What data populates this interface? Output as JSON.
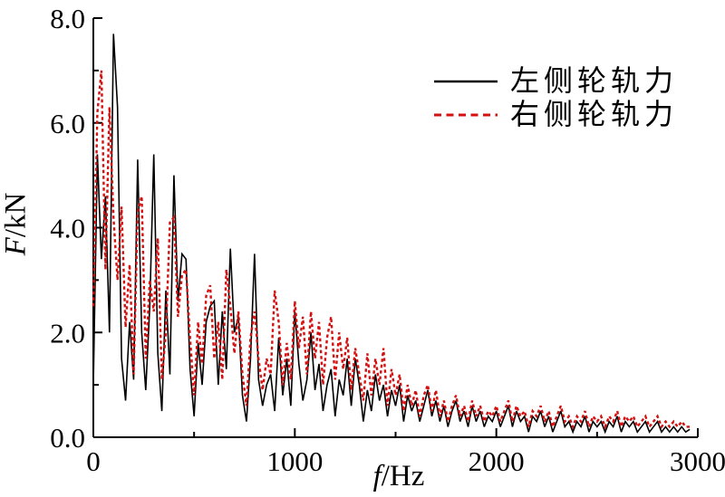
{
  "figure": {
    "background": "#ffffff",
    "text_color": "#000000"
  },
  "chart_data": {
    "type": "line",
    "title": "",
    "xlabel_italic": "f",
    "xlabel_rest": "/Hz",
    "ylabel_italic": "F",
    "ylabel_rest": "/kN",
    "xlim": [
      0,
      3000
    ],
    "ylim": [
      0.0,
      8.0
    ],
    "grid": false,
    "legend_position": "upper-right-inside",
    "x_major_ticks": [
      0,
      1000,
      2000,
      3000
    ],
    "x_major_tick_labels": [
      "0",
      "1000",
      "2000",
      "3000"
    ],
    "x_minor_ticks": [
      500,
      1500,
      2500
    ],
    "y_major_ticks": [
      0,
      2,
      4,
      6,
      8
    ],
    "y_major_tick_labels": [
      "0.0",
      "2.0",
      "4.0",
      "6.0",
      "8.0"
    ],
    "y_minor_ticks": [
      1,
      3,
      5,
      7
    ],
    "x_start": 0,
    "x_step": 20,
    "series": [
      {
        "name": "左侧轮轨力",
        "color": "#000000",
        "style": "solid",
        "line_width": 1.6,
        "values": [
          1.0,
          5.4,
          3.4,
          4.6,
          2.0,
          7.7,
          6.3,
          1.5,
          0.7,
          2.2,
          1.1,
          5.3,
          2.0,
          0.9,
          2.5,
          5.4,
          1.6,
          0.5,
          2.8,
          1.2,
          5.0,
          2.6,
          3.5,
          3.4,
          1.3,
          0.4,
          1.8,
          1.0,
          2.2,
          2.5,
          2.6,
          1.0,
          2.4,
          1.3,
          3.6,
          2.0,
          2.3,
          0.8,
          0.3,
          1.5,
          3.5,
          1.1,
          0.6,
          1.0,
          1.2,
          0.5,
          1.9,
          0.8,
          1.5,
          0.6,
          2.4,
          1.4,
          0.7,
          1.1,
          2.0,
          0.9,
          1.4,
          0.5,
          1.0,
          1.3,
          0.4,
          1.1,
          0.8,
          1.5,
          0.6,
          1.5,
          1.0,
          0.3,
          0.9,
          0.5,
          1.2,
          0.7,
          1.0,
          0.4,
          0.9,
          0.6,
          1.0,
          0.3,
          0.8,
          0.5,
          0.7,
          0.3,
          0.6,
          0.9,
          0.4,
          0.7,
          0.3,
          0.6,
          0.2,
          0.5,
          0.7,
          0.3,
          0.5,
          0.2,
          0.6,
          0.3,
          0.5,
          0.2,
          0.4,
          0.3,
          0.5,
          0.2,
          0.4,
          0.6,
          0.2,
          0.5,
          0.3,
          0.4,
          0.1,
          0.4,
          0.3,
          0.5,
          0.2,
          0.4,
          0.1,
          0.3,
          0.5,
          0.2,
          0.3,
          0.1,
          0.3,
          0.2,
          0.4,
          0.1,
          0.3,
          0.2,
          0.3,
          0.1,
          0.3,
          0.2,
          0.4,
          0.1,
          0.3,
          0.2,
          0.3,
          0.1,
          0.2,
          0.3,
          0.1,
          0.2,
          0.3,
          0.1,
          0.2,
          0.1,
          0.2,
          0.1,
          0.2,
          0.1,
          0.15
        ]
      },
      {
        "name": "右侧轮轨力",
        "color": "#d41111",
        "style": "dashed",
        "line_width": 2.4,
        "values": [
          2.5,
          6.2,
          7.0,
          3.2,
          6.3,
          4.2,
          3.0,
          4.4,
          2.1,
          3.3,
          1.2,
          4.3,
          4.6,
          1.5,
          3.0,
          2.4,
          3.8,
          1.1,
          2.0,
          4.1,
          4.2,
          2.3,
          3.1,
          3.2,
          1.9,
          0.8,
          2.2,
          1.4,
          2.7,
          2.9,
          1.5,
          2.2,
          1.1,
          3.2,
          2.5,
          1.6,
          2.4,
          1.2,
          0.6,
          1.9,
          2.4,
          1.5,
          0.9,
          1.5,
          1.2,
          2.8,
          2.2,
          1.0,
          1.8,
          1.1,
          2.6,
          1.7,
          2.3,
          1.2,
          2.4,
          1.5,
          2.2,
          1.0,
          1.9,
          2.3,
          1.1,
          2.0,
          1.3,
          1.9,
          0.9,
          1.7,
          1.2,
          0.7,
          1.6,
          0.8,
          1.5,
          1.0,
          1.7,
          0.6,
          1.3,
          0.8,
          1.2,
          0.5,
          1.0,
          0.6,
          0.9,
          0.4,
          0.8,
          1.0,
          0.5,
          0.9,
          0.4,
          0.7,
          0.3,
          0.6,
          0.8,
          0.4,
          0.6,
          0.3,
          0.7,
          0.4,
          0.6,
          0.3,
          0.5,
          0.4,
          0.6,
          0.3,
          0.5,
          0.7,
          0.3,
          0.6,
          0.4,
          0.5,
          0.2,
          0.5,
          0.4,
          0.6,
          0.3,
          0.5,
          0.2,
          0.4,
          0.6,
          0.3,
          0.4,
          0.2,
          0.4,
          0.3,
          0.5,
          0.2,
          0.4,
          0.3,
          0.4,
          0.2,
          0.4,
          0.3,
          0.5,
          0.2,
          0.4,
          0.3,
          0.4,
          0.2,
          0.3,
          0.4,
          0.2,
          0.3,
          0.4,
          0.2,
          0.3,
          0.2,
          0.3,
          0.2,
          0.3,
          0.2,
          0.2
        ]
      }
    ]
  }
}
